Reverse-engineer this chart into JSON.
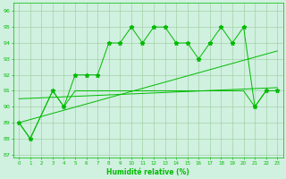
{
  "x": [
    0,
    1,
    2,
    3,
    4,
    5,
    6,
    7,
    8,
    9,
    10,
    11,
    12,
    13,
    14,
    15,
    16,
    17,
    18,
    19,
    20,
    21,
    22,
    23
  ],
  "y_main": [
    89,
    88,
    null,
    91,
    90,
    92,
    92,
    92,
    94,
    94,
    95,
    94,
    95,
    95,
    94,
    94,
    93,
    94,
    95,
    94,
    95,
    90,
    91,
    91
  ],
  "y_low": [
    89,
    88,
    null,
    91,
    90,
    91,
    91,
    91,
    91,
    91,
    91,
    91,
    91,
    91,
    91,
    91,
    91,
    91,
    91,
    91,
    91,
    90,
    91,
    91
  ],
  "trend1_x": [
    0,
    23
  ],
  "trend1_y": [
    89.0,
    93.5
  ],
  "trend2_x": [
    0,
    23
  ],
  "trend2_y": [
    90.5,
    91.2
  ],
  "xlabel": "Humidité relative (%)",
  "yticks": [
    87,
    88,
    89,
    90,
    91,
    92,
    93,
    94,
    95,
    96
  ],
  "xlim": [
    -0.5,
    23.5
  ],
  "ylim": [
    86.8,
    96.5
  ],
  "line_color": "#00bb00",
  "bg_color": "#d0f0e0",
  "grid_color": "#99cc99"
}
